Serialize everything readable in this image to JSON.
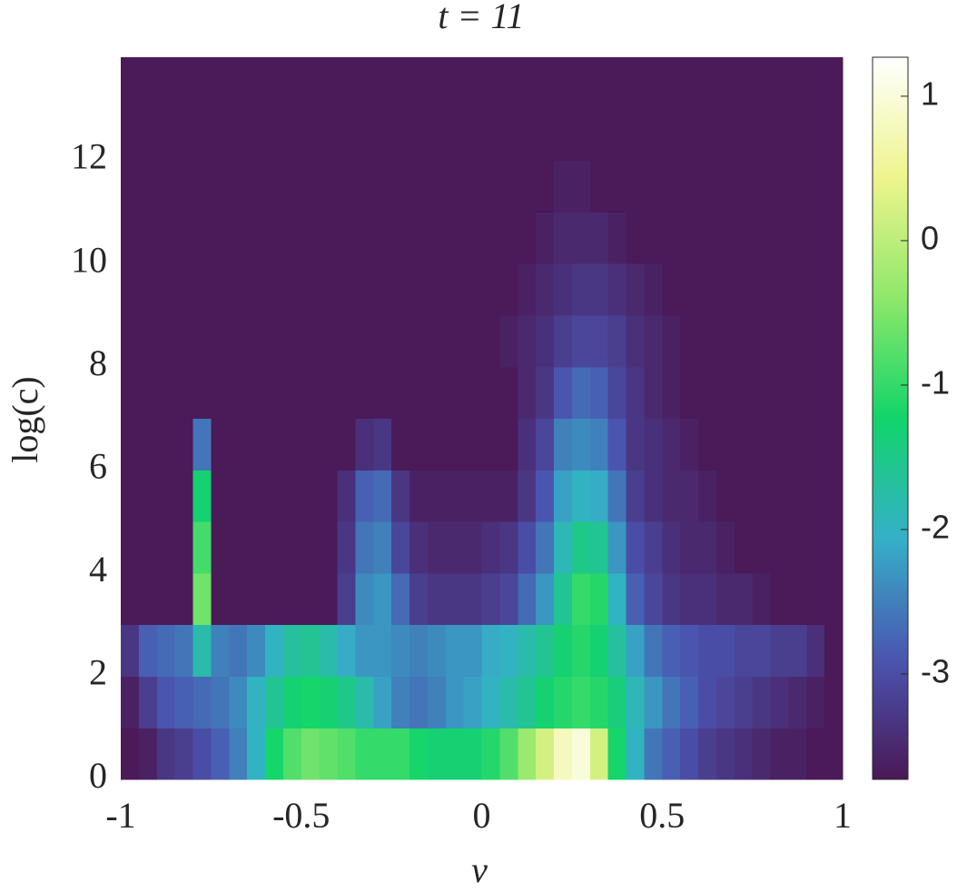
{
  "chart_data": {
    "type": "heatmap",
    "title": "t = 11",
    "x_label": "v",
    "y_label": "log(c)",
    "x": [
      -0.975,
      -0.925,
      -0.875,
      -0.825,
      -0.775,
      -0.725,
      -0.675,
      -0.625,
      -0.575,
      -0.525,
      -0.475,
      -0.425,
      -0.375,
      -0.325,
      -0.275,
      -0.225,
      -0.175,
      -0.125,
      -0.075,
      -0.025,
      0.025,
      0.075,
      0.125,
      0.175,
      0.225,
      0.275,
      0.325,
      0.375,
      0.425,
      0.475,
      0.525,
      0.575,
      0.625,
      0.675,
      0.725,
      0.775,
      0.825,
      0.875,
      0.925,
      0.975
    ],
    "y": [
      0.5,
      1.5,
      2.5,
      3.5,
      4.5,
      5.5,
      6.5,
      7.5,
      8.5,
      9.5,
      10.5,
      11.5,
      12.5,
      13.5
    ],
    "z": [
      [
        -3.7,
        -3.6,
        -3.3,
        -3.2,
        -3.0,
        -2.8,
        -2.5,
        -2.0,
        -1.2,
        -0.8,
        -0.6,
        -0.7,
        -0.8,
        -1.0,
        -1.0,
        -1.0,
        -1.2,
        -1.3,
        -1.3,
        -1.3,
        -1.1,
        -0.8,
        -0.3,
        0.2,
        0.8,
        1.0,
        0.2,
        -1.2,
        -2.0,
        -2.6,
        -2.8,
        -3.0,
        -3.2,
        -3.3,
        -3.4,
        -3.5,
        -3.6,
        -3.6,
        -3.7,
        -3.7
      ],
      [
        -3.6,
        -3.2,
        -2.9,
        -2.8,
        -2.7,
        -2.6,
        -2.4,
        -2.0,
        -1.6,
        -1.3,
        -1.2,
        -1.3,
        -1.5,
        -1.8,
        -2.2,
        -2.5,
        -2.6,
        -2.5,
        -2.3,
        -2.2,
        -2.0,
        -1.8,
        -1.6,
        -1.3,
        -1.1,
        -1.0,
        -1.1,
        -1.4,
        -1.9,
        -2.3,
        -2.6,
        -2.8,
        -3.0,
        -3.1,
        -3.2,
        -3.3,
        -3.4,
        -3.5,
        -3.6,
        -3.7
      ],
      [
        -3.3,
        -2.8,
        -2.7,
        -2.6,
        -1.8,
        -2.5,
        -2.6,
        -2.4,
        -2.0,
        -1.7,
        -1.6,
        -1.8,
        -2.1,
        -2.3,
        -2.3,
        -2.4,
        -2.5,
        -2.4,
        -2.3,
        -2.3,
        -2.1,
        -2.0,
        -1.8,
        -1.6,
        -1.3,
        -1.1,
        -1.3,
        -1.7,
        -2.2,
        -2.6,
        -2.8,
        -2.9,
        -3.0,
        -3.0,
        -3.1,
        -3.1,
        -3.2,
        -3.2,
        -3.4,
        -3.7
      ],
      [
        -3.7,
        -3.7,
        -3.7,
        -3.7,
        -0.6,
        -3.7,
        -3.7,
        -3.7,
        -3.7,
        -3.7,
        -3.7,
        -3.7,
        -3.2,
        -2.4,
        -2.3,
        -2.7,
        -3.2,
        -3.3,
        -3.3,
        -3.3,
        -3.2,
        -3.1,
        -2.7,
        -2.3,
        -1.6,
        -1.0,
        -1.1,
        -2.0,
        -2.8,
        -3.1,
        -3.3,
        -3.4,
        -3.4,
        -3.5,
        -3.5,
        -3.6,
        -3.7,
        -3.7,
        -3.7,
        -3.7
      ],
      [
        -3.7,
        -3.7,
        -3.7,
        -3.7,
        -0.9,
        -3.7,
        -3.7,
        -3.7,
        -3.7,
        -3.7,
        -3.7,
        -3.7,
        -3.3,
        -2.6,
        -2.5,
        -3.1,
        -3.4,
        -3.5,
        -3.5,
        -3.5,
        -3.4,
        -3.3,
        -3.0,
        -2.6,
        -1.9,
        -1.5,
        -1.6,
        -2.3,
        -3.0,
        -3.2,
        -3.4,
        -3.5,
        -3.5,
        -3.6,
        -3.7,
        -3.7,
        -3.7,
        -3.7,
        -3.7,
        -3.7
      ],
      [
        -3.7,
        -3.7,
        -3.7,
        -3.7,
        -1.3,
        -3.7,
        -3.7,
        -3.7,
        -3.7,
        -3.7,
        -3.7,
        -3.7,
        -3.4,
        -2.8,
        -2.7,
        -3.3,
        -3.6,
        -3.6,
        -3.6,
        -3.6,
        -3.6,
        -3.6,
        -3.3,
        -2.9,
        -2.2,
        -2.0,
        -2.1,
        -2.6,
        -3.2,
        -3.4,
        -3.5,
        -3.5,
        -3.6,
        -3.7,
        -3.7,
        -3.7,
        -3.7,
        -3.7,
        -3.7,
        -3.7
      ],
      [
        -3.7,
        -3.7,
        -3.7,
        -3.7,
        -2.6,
        -3.7,
        -3.7,
        -3.7,
        -3.7,
        -3.7,
        -3.7,
        -3.7,
        -3.7,
        -3.4,
        -3.3,
        -3.7,
        -3.7,
        -3.7,
        -3.7,
        -3.7,
        -3.7,
        -3.7,
        -3.4,
        -3.1,
        -2.5,
        -2.4,
        -2.5,
        -2.9,
        -3.3,
        -3.4,
        -3.5,
        -3.6,
        -3.7,
        -3.7,
        -3.7,
        -3.7,
        -3.7,
        -3.7,
        -3.7,
        -3.7
      ],
      [
        -3.7,
        -3.7,
        -3.7,
        -3.7,
        -3.7,
        -3.7,
        -3.7,
        -3.7,
        -3.7,
        -3.7,
        -3.7,
        -3.7,
        -3.7,
        -3.7,
        -3.7,
        -3.7,
        -3.7,
        -3.7,
        -3.7,
        -3.7,
        -3.7,
        -3.7,
        -3.5,
        -3.3,
        -2.9,
        -2.7,
        -2.8,
        -3.1,
        -3.3,
        -3.5,
        -3.6,
        -3.7,
        -3.7,
        -3.7,
        -3.7,
        -3.7,
        -3.7,
        -3.7,
        -3.7,
        -3.7
      ],
      [
        -3.7,
        -3.7,
        -3.7,
        -3.7,
        -3.7,
        -3.7,
        -3.7,
        -3.7,
        -3.7,
        -3.7,
        -3.7,
        -3.7,
        -3.7,
        -3.7,
        -3.7,
        -3.7,
        -3.7,
        -3.7,
        -3.7,
        -3.7,
        -3.7,
        -3.6,
        -3.5,
        -3.4,
        -3.2,
        -3.1,
        -3.1,
        -3.2,
        -3.4,
        -3.5,
        -3.6,
        -3.7,
        -3.7,
        -3.7,
        -3.7,
        -3.7,
        -3.7,
        -3.7,
        -3.7,
        -3.7
      ],
      [
        -3.7,
        -3.7,
        -3.7,
        -3.7,
        -3.7,
        -3.7,
        -3.7,
        -3.7,
        -3.7,
        -3.7,
        -3.7,
        -3.7,
        -3.7,
        -3.7,
        -3.7,
        -3.7,
        -3.7,
        -3.7,
        -3.7,
        -3.7,
        -3.7,
        -3.7,
        -3.6,
        -3.5,
        -3.4,
        -3.3,
        -3.3,
        -3.4,
        -3.5,
        -3.6,
        -3.7,
        -3.7,
        -3.7,
        -3.7,
        -3.7,
        -3.7,
        -3.7,
        -3.7,
        -3.7,
        -3.7
      ],
      [
        -3.7,
        -3.7,
        -3.7,
        -3.7,
        -3.7,
        -3.7,
        -3.7,
        -3.7,
        -3.7,
        -3.7,
        -3.7,
        -3.7,
        -3.7,
        -3.7,
        -3.7,
        -3.7,
        -3.7,
        -3.7,
        -3.7,
        -3.7,
        -3.7,
        -3.7,
        -3.7,
        -3.6,
        -3.5,
        -3.5,
        -3.5,
        -3.6,
        -3.7,
        -3.7,
        -3.7,
        -3.7,
        -3.7,
        -3.7,
        -3.7,
        -3.7,
        -3.7,
        -3.7,
        -3.7,
        -3.7
      ],
      [
        -3.7,
        -3.7,
        -3.7,
        -3.7,
        -3.7,
        -3.7,
        -3.7,
        -3.7,
        -3.7,
        -3.7,
        -3.7,
        -3.7,
        -3.7,
        -3.7,
        -3.7,
        -3.7,
        -3.7,
        -3.7,
        -3.7,
        -3.7,
        -3.7,
        -3.7,
        -3.7,
        -3.7,
        -3.6,
        -3.6,
        -3.7,
        -3.7,
        -3.7,
        -3.7,
        -3.7,
        -3.7,
        -3.7,
        -3.7,
        -3.7,
        -3.7,
        -3.7,
        -3.7,
        -3.7,
        -3.7
      ],
      [
        -3.7,
        -3.7,
        -3.7,
        -3.7,
        -3.7,
        -3.7,
        -3.7,
        -3.7,
        -3.7,
        -3.7,
        -3.7,
        -3.7,
        -3.7,
        -3.7,
        -3.7,
        -3.7,
        -3.7,
        -3.7,
        -3.7,
        -3.7,
        -3.7,
        -3.7,
        -3.7,
        -3.7,
        -3.7,
        -3.7,
        -3.7,
        -3.7,
        -3.7,
        -3.7,
        -3.7,
        -3.7,
        -3.7,
        -3.7,
        -3.7,
        -3.7,
        -3.7,
        -3.7,
        -3.7,
        -3.7
      ],
      [
        -3.7,
        -3.7,
        -3.7,
        -3.7,
        -3.7,
        -3.7,
        -3.7,
        -3.7,
        -3.7,
        -3.7,
        -3.7,
        -3.7,
        -3.7,
        -3.7,
        -3.7,
        -3.7,
        -3.7,
        -3.7,
        -3.7,
        -3.7,
        -3.7,
        -3.7,
        -3.7,
        -3.7,
        -3.7,
        -3.7,
        -3.7,
        -3.7,
        -3.7,
        -3.7,
        -3.7,
        -3.7,
        -3.7,
        -3.7,
        -3.7,
        -3.7,
        -3.7,
        -3.7,
        -3.7,
        -3.7
      ]
    ],
    "xlim": [
      -1,
      1
    ],
    "xticks": [
      -1,
      -0.5,
      0,
      0.5,
      1
    ],
    "ylim": [
      0,
      14
    ],
    "yticks": [
      0,
      2,
      4,
      6,
      8,
      10,
      12
    ],
    "clim": [
      -3.73,
      1.27
    ],
    "cticks": [
      -3,
      -2,
      -1,
      0,
      1
    ],
    "colors": [
      "#4a1856",
      "#4a55b0",
      "#35b0c8",
      "#12d46a",
      "#8ee86a",
      "#eef58c",
      "#ffffff"
    ]
  }
}
